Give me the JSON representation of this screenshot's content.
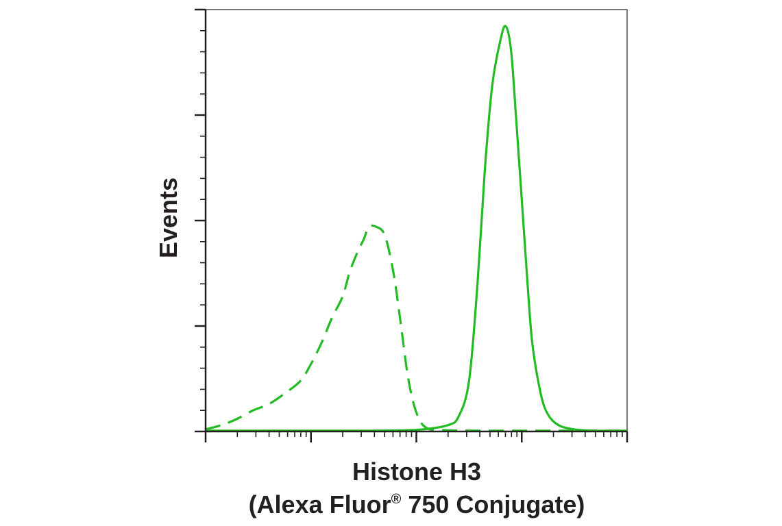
{
  "chart_data": {
    "type": "line",
    "title": "",
    "xlabel_line1": "Histone H3",
    "xlabel_line2_pre": "(Alexa Fluor",
    "xlabel_line2_reg": "®",
    "xlabel_line2_post": " 750 Conjugate)",
    "ylabel": "Events",
    "x_scale": "log",
    "x_decades": 4,
    "xlim": [
      0,
      4
    ],
    "ylim": [
      0,
      100
    ],
    "y_major_ticks": [
      0,
      25,
      50,
      75,
      100
    ],
    "y_minor_per_major": 5,
    "grid": false,
    "legend": "none",
    "series": [
      {
        "line_style": "dashed",
        "color": "#22bb22",
        "x": [
          0.0,
          0.15,
          0.3,
          0.45,
          0.6,
          0.75,
          0.9,
          1.0,
          1.1,
          1.2,
          1.3,
          1.37,
          1.45,
          1.5,
          1.55,
          1.62,
          1.7,
          1.78,
          1.85,
          1.92,
          2.0,
          2.1,
          2.3,
          2.6,
          3.0,
          3.5,
          4.0
        ],
        "y": [
          0.5,
          1.5,
          3,
          5,
          6.5,
          9,
          12,
          16,
          21,
          27,
          32,
          38,
          43,
          45.5,
          48.5,
          48.5,
          46.5,
          38,
          26,
          13,
          4.5,
          0.8,
          0.3,
          0.2,
          0.2,
          0.2,
          0.2
        ]
      },
      {
        "line_style": "solid",
        "color": "#22bb22",
        "x": [
          0.0,
          1.5,
          1.9,
          2.1,
          2.3,
          2.4,
          2.5,
          2.58,
          2.65,
          2.72,
          2.8,
          2.85,
          2.9,
          2.95,
          3.0,
          3.05,
          3.1,
          3.18,
          3.25,
          3.35,
          3.5,
          3.7,
          4.0
        ],
        "y": [
          0.2,
          0.2,
          0.3,
          0.6,
          1.5,
          3.5,
          12,
          35,
          62,
          82,
          93,
          96,
          90,
          73,
          55,
          37,
          21,
          9,
          4,
          1.5,
          0.5,
          0.2,
          0.2
        ]
      }
    ]
  }
}
